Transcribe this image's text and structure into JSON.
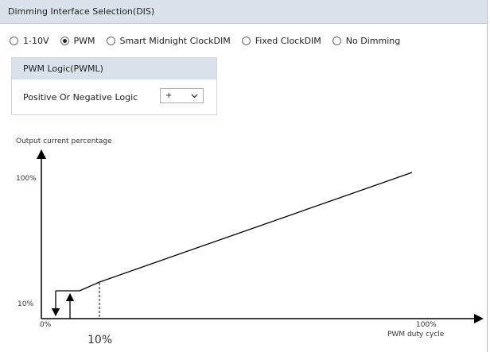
{
  "header": {
    "title": "Dimming Interface Selection(DIS)"
  },
  "interface_options": {
    "options": [
      "1-10V",
      "PWM",
      "Smart Midnight ClockDIM",
      "Fixed ClockDIM",
      "No Dimming"
    ],
    "selected_index": 1
  },
  "pwm_logic": {
    "title": "PWM Logic(PWML)",
    "field_label": "Positive Or Negative Logic",
    "select_value": "+"
  },
  "diagram": {
    "y_axis_label": "Output current percentage",
    "y_top_label": "100%",
    "y_bottom_label": "10%",
    "x_origin_label": "0%",
    "x_end_label": "100%",
    "x_axis_label": "PWM duty cycle",
    "threshold_label": "10%"
  }
}
